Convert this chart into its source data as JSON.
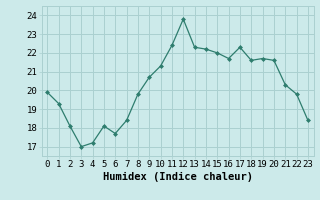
{
  "x": [
    0,
    1,
    2,
    3,
    4,
    5,
    6,
    7,
    8,
    9,
    10,
    11,
    12,
    13,
    14,
    15,
    16,
    17,
    18,
    19,
    20,
    21,
    22,
    23
  ],
  "y": [
    19.9,
    19.3,
    18.1,
    17.0,
    17.2,
    18.1,
    17.7,
    18.4,
    19.8,
    20.7,
    21.3,
    22.4,
    23.8,
    22.3,
    22.2,
    22.0,
    21.7,
    22.3,
    21.6,
    21.7,
    21.6,
    20.3,
    19.8,
    18.4
  ],
  "line_color": "#2e7d6e",
  "marker": "D",
  "marker_size": 2,
  "bg_color": "#cceaea",
  "grid_color": "#aad0d0",
  "xlabel": "Humidex (Indice chaleur)",
  "xlim": [
    -0.5,
    23.5
  ],
  "ylim": [
    16.5,
    24.5
  ],
  "yticks": [
    17,
    18,
    19,
    20,
    21,
    22,
    23,
    24
  ],
  "xticks": [
    0,
    1,
    2,
    3,
    4,
    5,
    6,
    7,
    8,
    9,
    10,
    11,
    12,
    13,
    14,
    15,
    16,
    17,
    18,
    19,
    20,
    21,
    22,
    23
  ],
  "tick_fontsize": 6.5,
  "xlabel_fontsize": 7.5
}
